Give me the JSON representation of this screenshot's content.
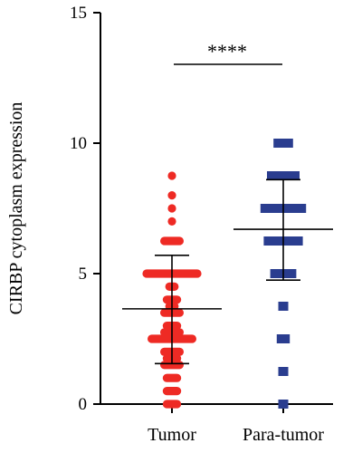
{
  "chart_data": {
    "type": "scatter",
    "ylabel": "CIRBP cytoplasm expression",
    "ylim": [
      0,
      15
    ],
    "yticks": [
      0,
      5,
      10,
      15
    ],
    "categories": [
      "Tumor",
      "Para-tumor"
    ],
    "significance": "****",
    "series": [
      {
        "name": "Tumor",
        "color": "#ee2a24",
        "marker": "circle",
        "mean": 3.65,
        "sd_low": 1.55,
        "sd_high": 5.7,
        "points": [
          {
            "y": 8.75,
            "w": 1
          },
          {
            "y": 8.0,
            "w": 1
          },
          {
            "y": 7.5,
            "w": 1
          },
          {
            "y": 7.0,
            "w": 1
          },
          {
            "y": 6.25,
            "w": 4
          },
          {
            "y": 5.0,
            "w": 11
          },
          {
            "y": 4.5,
            "w": 2
          },
          {
            "y": 4.0,
            "w": 3
          },
          {
            "y": 3.75,
            "w": 2
          },
          {
            "y": 3.5,
            "w": 4
          },
          {
            "y": 3.0,
            "w": 3
          },
          {
            "y": 2.75,
            "w": 4
          },
          {
            "y": 2.5,
            "w": 9
          },
          {
            "y": 2.0,
            "w": 4
          },
          {
            "y": 1.75,
            "w": 3
          },
          {
            "y": 1.5,
            "w": 4
          },
          {
            "y": 1.0,
            "w": 3
          },
          {
            "y": 0.5,
            "w": 3
          },
          {
            "y": 0.0,
            "w": 3
          }
        ]
      },
      {
        "name": "Para-tumor",
        "color": "#2a3d8f",
        "marker": "square",
        "mean": 6.7,
        "sd_low": 4.75,
        "sd_high": 8.6,
        "points": [
          {
            "y": 10.0,
            "w": 3
          },
          {
            "y": 8.75,
            "w": 5
          },
          {
            "y": 7.5,
            "w": 7
          },
          {
            "y": 6.25,
            "w": 6
          },
          {
            "y": 5.0,
            "w": 4
          },
          {
            "y": 3.75,
            "w": 1
          },
          {
            "y": 2.5,
            "w": 2
          },
          {
            "y": 1.25,
            "w": 1
          },
          {
            "y": 0.0,
            "w": 1
          }
        ]
      }
    ]
  }
}
